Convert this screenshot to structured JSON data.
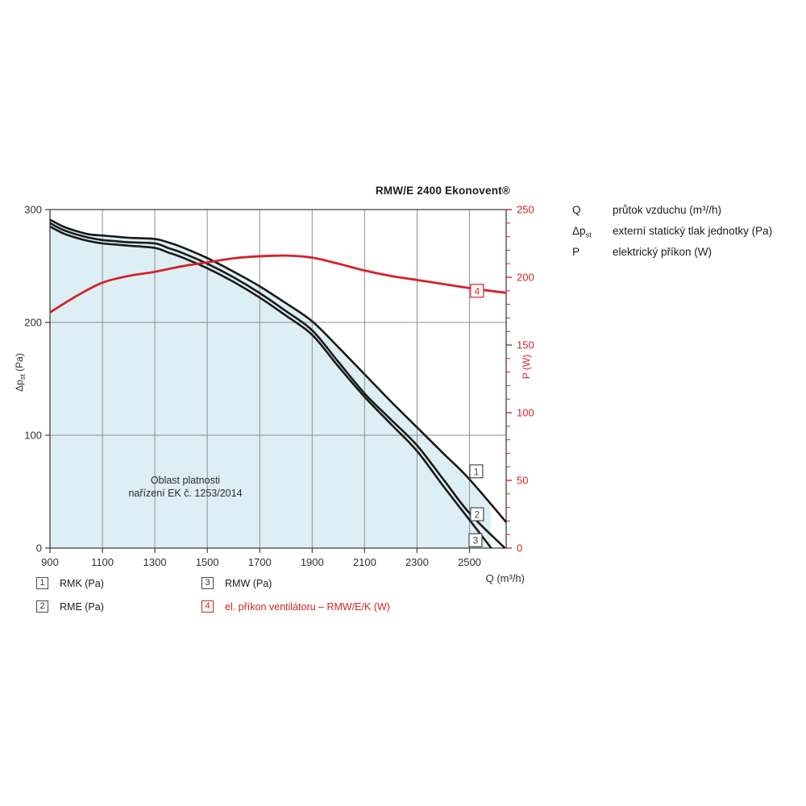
{
  "header": {
    "title": "RMW/E 2400 Ekonovent®"
  },
  "definitions": [
    {
      "sym": "Q",
      "sub": "",
      "desc": "průtok vzduchu (m³//h)"
    },
    {
      "sym": "Δp",
      "sub": "st",
      "desc": "externí statický tlak jednotky (Pa)"
    },
    {
      "sym": "P",
      "sub": "",
      "desc": "elektrický příkon (W)"
    }
  ],
  "legend": {
    "items": [
      {
        "num": "1",
        "label": "RMK (Pa)",
        "red": false
      },
      {
        "num": "2",
        "label": "RME (Pa)",
        "red": false
      },
      {
        "num": "3",
        "label": "RMW (Pa)",
        "red": false
      },
      {
        "num": "4",
        "label": "el. příkon ventilátoru – RMW/E/K (W)",
        "red": true
      }
    ]
  },
  "colors": {
    "red": "#d2232b",
    "black_curve": "#1a1a1a",
    "shade": "#ddeef4",
    "grid": "#8f8f8f",
    "frame": "#3f3f3f",
    "text": "#2e2e2e"
  },
  "chart_data": {
    "type": "line",
    "title": "RMW/E 2400 Ekonovent®",
    "grid": true,
    "x_axis": {
      "label": "Q (m³/h)",
      "min": 900,
      "max": 2640,
      "ticks": [
        900,
        1100,
        1300,
        1500,
        1700,
        1900,
        2100,
        2300,
        2500
      ]
    },
    "y_left": {
      "label": "Δpst (Pa)",
      "label_parts": {
        "main": "Δp",
        "sub": "st",
        "rest": " (Pa)"
      },
      "min": 0,
      "max": 300,
      "ticks": [
        0,
        100,
        200,
        300
      ]
    },
    "y_right": {
      "label": "P (W)",
      "min": 0,
      "max": 250,
      "ticks": [
        0,
        50,
        100,
        150,
        200,
        250
      ],
      "minor_step": 10
    },
    "validity_region": {
      "label": [
        "Oblast platnosti",
        "nařízení EK č. 1253/2014"
      ],
      "bounded_by": "RMK",
      "q_max": 2580
    },
    "series": [
      {
        "id": "1",
        "name": "RMK",
        "unit": "Pa",
        "axis": "left",
        "color": "black",
        "marker_at": {
          "q": 2526,
          "v": 68
        },
        "points": [
          [
            900,
            291
          ],
          [
            950,
            285
          ],
          [
            1000,
            281
          ],
          [
            1050,
            278
          ],
          [
            1100,
            277
          ],
          [
            1150,
            276
          ],
          [
            1200,
            275
          ],
          [
            1300,
            274
          ],
          [
            1350,
            271
          ],
          [
            1400,
            267
          ],
          [
            1500,
            257
          ],
          [
            1600,
            245
          ],
          [
            1700,
            232
          ],
          [
            1800,
            217
          ],
          [
            1900,
            201
          ],
          [
            2000,
            178
          ],
          [
            2100,
            154
          ],
          [
            2200,
            130
          ],
          [
            2300,
            107
          ],
          [
            2400,
            84
          ],
          [
            2500,
            61
          ],
          [
            2640,
            23
          ]
        ]
      },
      {
        "id": "2",
        "name": "RME",
        "unit": "Pa",
        "axis": "left",
        "color": "black",
        "marker_at": {
          "q": 2529,
          "v": 30
        },
        "points": [
          [
            900,
            288
          ],
          [
            950,
            282
          ],
          [
            1000,
            278
          ],
          [
            1050,
            275
          ],
          [
            1100,
            273
          ],
          [
            1150,
            272
          ],
          [
            1200,
            271
          ],
          [
            1300,
            270
          ],
          [
            1350,
            266
          ],
          [
            1400,
            262
          ],
          [
            1500,
            252
          ],
          [
            1600,
            240
          ],
          [
            1700,
            226
          ],
          [
            1800,
            210
          ],
          [
            1900,
            193
          ],
          [
            2000,
            165
          ],
          [
            2100,
            137
          ],
          [
            2200,
            114
          ],
          [
            2300,
            91
          ],
          [
            2400,
            61
          ],
          [
            2500,
            31
          ],
          [
            2635,
            0
          ]
        ]
      },
      {
        "id": "3",
        "name": "RMW",
        "unit": "Pa",
        "axis": "left",
        "color": "black",
        "marker_at": {
          "q": 2523,
          "v": 7
        },
        "points": [
          [
            900,
            285
          ],
          [
            950,
            279
          ],
          [
            1000,
            275
          ],
          [
            1050,
            272
          ],
          [
            1100,
            270
          ],
          [
            1150,
            269
          ],
          [
            1200,
            268
          ],
          [
            1300,
            266
          ],
          [
            1350,
            262
          ],
          [
            1400,
            258
          ],
          [
            1500,
            248
          ],
          [
            1600,
            236
          ],
          [
            1700,
            222
          ],
          [
            1800,
            206
          ],
          [
            1900,
            189
          ],
          [
            2000,
            161
          ],
          [
            2100,
            134
          ],
          [
            2200,
            110
          ],
          [
            2300,
            86
          ],
          [
            2400,
            55
          ],
          [
            2500,
            25
          ],
          [
            2583,
            0
          ]
        ]
      },
      {
        "id": "4",
        "name": "el. příkon ventilátoru – RMW/E/K",
        "unit": "W",
        "axis": "right",
        "color": "red",
        "marker_at": {
          "q": 2529,
          "v": 190
        },
        "points": [
          [
            900,
            174
          ],
          [
            1000,
            186
          ],
          [
            1100,
            196
          ],
          [
            1200,
            201
          ],
          [
            1300,
            204
          ],
          [
            1400,
            208
          ],
          [
            1500,
            211
          ],
          [
            1600,
            214
          ],
          [
            1700,
            215.5
          ],
          [
            1800,
            216
          ],
          [
            1900,
            214.5
          ],
          [
            2000,
            210
          ],
          [
            2100,
            205
          ],
          [
            2200,
            201
          ],
          [
            2300,
            198
          ],
          [
            2400,
            195
          ],
          [
            2500,
            192
          ],
          [
            2640,
            188.5
          ]
        ]
      }
    ]
  }
}
